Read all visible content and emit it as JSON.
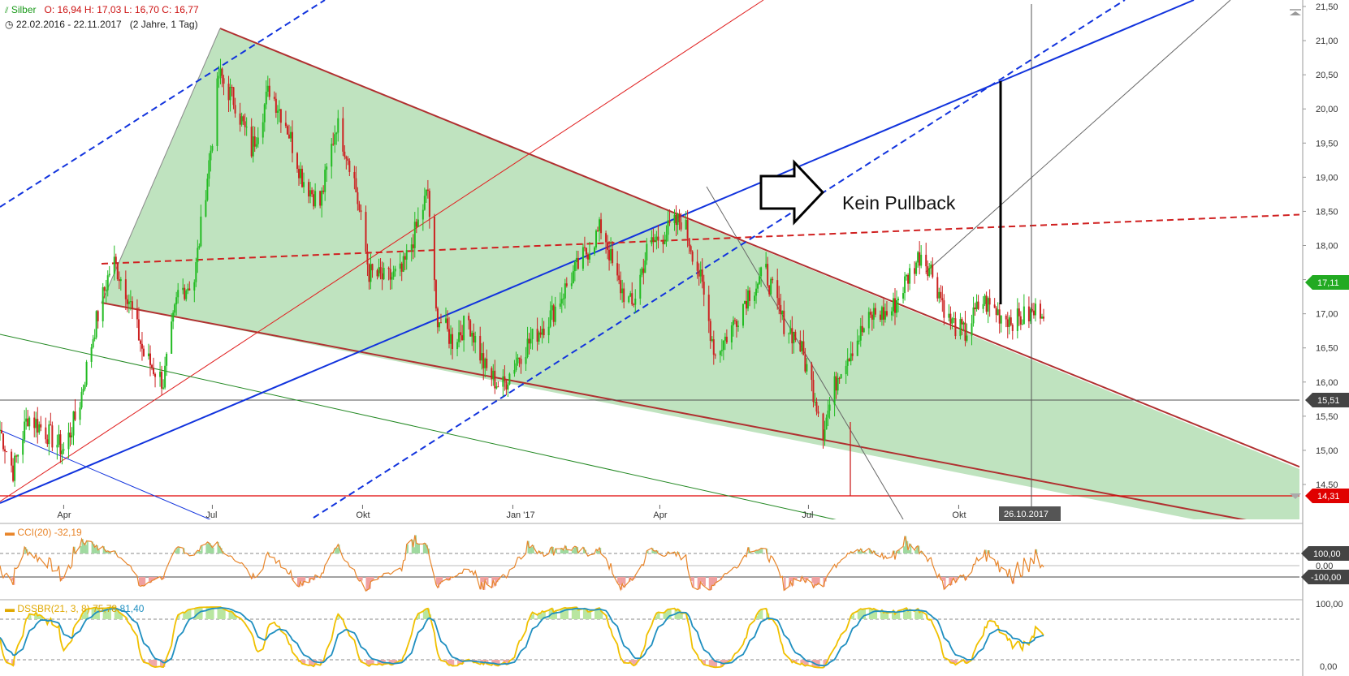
{
  "header": {
    "symbol": "Silber",
    "ohlc": "O: 16,94  H: 17,03  L: 16,70  C: 16,77",
    "range": "22.02.2016 - 22.11.2017",
    "period": "(2 Jahre, 1 Tag)"
  },
  "annotation": {
    "text": "Kein Pullback"
  },
  "colors": {
    "up": "#22bb22",
    "down": "#cc2222",
    "wedge_fill": "#bfe3bf",
    "trend_blue": "#1133dd",
    "resistance": "#b03030",
    "price_badge": "#22aa22",
    "support_badge": "#e00000",
    "cci": "#e8852a",
    "dss_k": "#f0c000",
    "dss_d": "#1f8fc0"
  },
  "chart_data": [
    {
      "type": "candlestick",
      "title": "Silber",
      "x_start": "2016-02-22",
      "x_end": "2017-11-22",
      "ylim": [
        14.3,
        21.5
      ],
      "x_ticks": [
        "Apr",
        "Jul",
        "Okt",
        "Jan '17",
        "Apr",
        "Jul",
        "Okt"
      ],
      "y_ticks": [
        "14,50",
        "15,00",
        "15,50",
        "16,00",
        "16,50",
        "17,00",
        "17,50",
        "18,00",
        "18,50",
        "19,00",
        "19,50",
        "20,00",
        "20,50",
        "21,00",
        "21,50"
      ],
      "last_price_label": "17,11",
      "horizontal_levels": [
        {
          "value": 15.51,
          "label": "15,51"
        },
        {
          "value": 14.31,
          "label": "14,31"
        }
      ],
      "crosshair_date_label": "26.10.2017",
      "approx_closes": [
        {
          "date": "2016-02-22",
          "close": 15.3
        },
        {
          "date": "2016-03-01",
          "close": 14.7
        },
        {
          "date": "2016-03-10",
          "close": 15.5
        },
        {
          "date": "2016-03-20",
          "close": 15.3
        },
        {
          "date": "2016-04-01",
          "close": 15.0
        },
        {
          "date": "2016-04-10",
          "close": 15.6
        },
        {
          "date": "2016-04-20",
          "close": 16.8
        },
        {
          "date": "2016-05-01",
          "close": 17.8
        },
        {
          "date": "2016-05-10",
          "close": 17.3
        },
        {
          "date": "2016-05-20",
          "close": 16.4
        },
        {
          "date": "2016-06-01",
          "close": 16.0
        },
        {
          "date": "2016-06-10",
          "close": 17.3
        },
        {
          "date": "2016-06-20",
          "close": 17.5
        },
        {
          "date": "2016-07-01",
          "close": 19.6
        },
        {
          "date": "2016-07-05",
          "close": 20.5
        },
        {
          "date": "2016-07-15",
          "close": 20.1
        },
        {
          "date": "2016-07-25",
          "close": 19.4
        },
        {
          "date": "2016-08-05",
          "close": 20.3
        },
        {
          "date": "2016-08-15",
          "close": 19.8
        },
        {
          "date": "2016-08-25",
          "close": 19.0
        },
        {
          "date": "2016-09-05",
          "close": 18.6
        },
        {
          "date": "2016-09-15",
          "close": 19.8
        },
        {
          "date": "2016-09-25",
          "close": 19.1
        },
        {
          "date": "2016-10-05",
          "close": 17.6
        },
        {
          "date": "2016-10-15",
          "close": 17.5
        },
        {
          "date": "2016-10-25",
          "close": 17.6
        },
        {
          "date": "2016-11-05",
          "close": 18.4
        },
        {
          "date": "2016-11-10",
          "close": 18.8
        },
        {
          "date": "2016-11-15",
          "close": 17.0
        },
        {
          "date": "2016-11-25",
          "close": 16.6
        },
        {
          "date": "2016-12-05",
          "close": 16.9
        },
        {
          "date": "2016-12-15",
          "close": 16.2
        },
        {
          "date": "2016-12-25",
          "close": 15.9
        },
        {
          "date": "2017-01-05",
          "close": 16.4
        },
        {
          "date": "2017-01-15",
          "close": 16.7
        },
        {
          "date": "2017-01-25",
          "close": 17.0
        },
        {
          "date": "2017-02-05",
          "close": 17.5
        },
        {
          "date": "2017-02-15",
          "close": 17.9
        },
        {
          "date": "2017-02-25",
          "close": 18.3
        },
        {
          "date": "2017-03-05",
          "close": 17.5
        },
        {
          "date": "2017-03-15",
          "close": 17.1
        },
        {
          "date": "2017-03-25",
          "close": 18.0
        },
        {
          "date": "2017-04-05",
          "close": 18.2
        },
        {
          "date": "2017-04-15",
          "close": 18.4
        },
        {
          "date": "2017-04-25",
          "close": 17.6
        },
        {
          "date": "2017-05-05",
          "close": 16.4
        },
        {
          "date": "2017-05-15",
          "close": 16.8
        },
        {
          "date": "2017-05-25",
          "close": 17.3
        },
        {
          "date": "2017-06-05",
          "close": 17.6
        },
        {
          "date": "2017-06-15",
          "close": 16.9
        },
        {
          "date": "2017-06-25",
          "close": 16.6
        },
        {
          "date": "2017-07-05",
          "close": 15.8
        },
        {
          "date": "2017-07-10",
          "close": 15.3
        },
        {
          "date": "2017-07-20",
          "close": 16.2
        },
        {
          "date": "2017-07-30",
          "close": 16.6
        },
        {
          "date": "2017-08-10",
          "close": 17.0
        },
        {
          "date": "2017-08-20",
          "close": 17.0
        },
        {
          "date": "2017-08-30",
          "close": 17.5
        },
        {
          "date": "2017-09-08",
          "close": 17.9
        },
        {
          "date": "2017-09-15",
          "close": 17.6
        },
        {
          "date": "2017-09-25",
          "close": 16.9
        },
        {
          "date": "2017-10-05",
          "close": 16.7
        },
        {
          "date": "2017-10-15",
          "close": 17.2
        },
        {
          "date": "2017-10-26",
          "close": 17.0
        },
        {
          "date": "2017-11-05",
          "close": 16.9
        },
        {
          "date": "2017-11-15",
          "close": 17.0
        },
        {
          "date": "2017-11-22",
          "close": 17.1
        }
      ]
    },
    {
      "type": "line",
      "title": "CCI(20)",
      "value_label": "-32,19",
      "levels": [
        {
          "value": 100,
          "label": "100,00"
        },
        {
          "value": 0,
          "label": "0,00"
        },
        {
          "value": -100,
          "label": "-100,00"
        }
      ]
    },
    {
      "type": "line",
      "title": "DSSBR(21, 3, 8)",
      "series": [
        {
          "name": "75,78",
          "color": "#f0c000"
        },
        {
          "name": "81,40",
          "color": "#1f8fc0"
        }
      ],
      "y_ticks": [
        "100,00",
        "0,00"
      ]
    }
  ]
}
